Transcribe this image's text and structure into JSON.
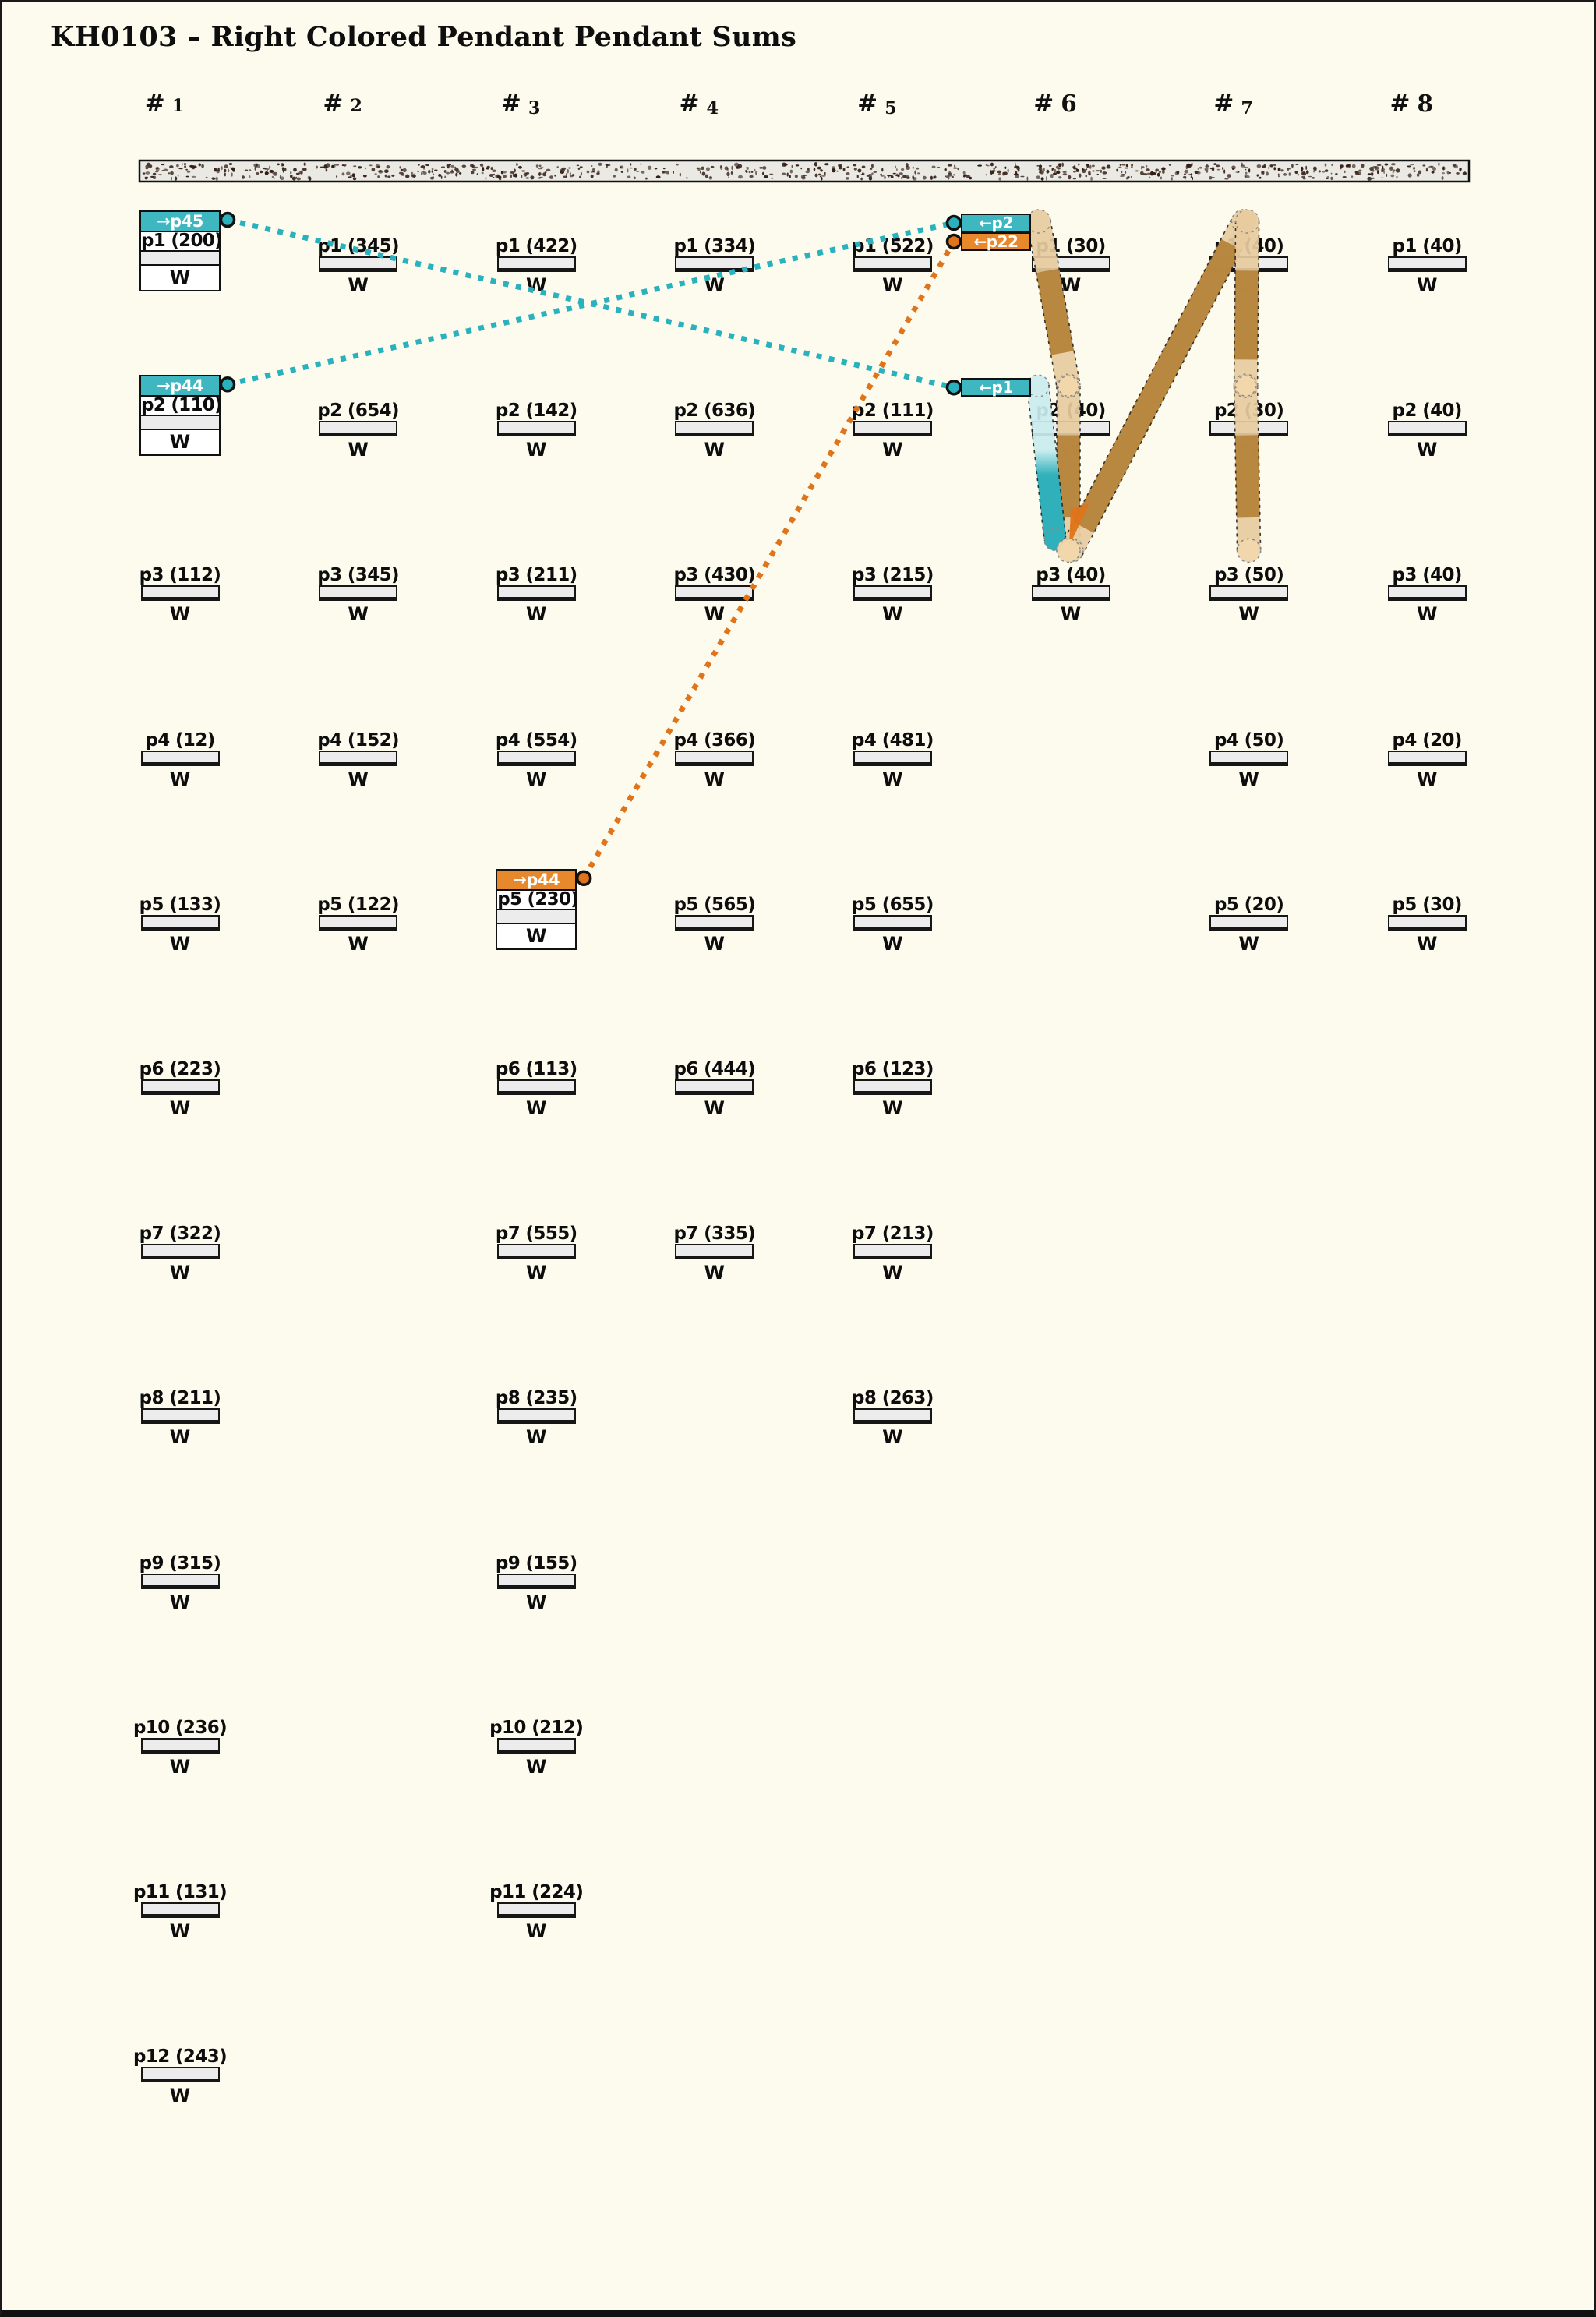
{
  "title": "KH0103 – Right Colored Pendant Pendant Sums",
  "header_prefix": "#",
  "headers": [
    "1",
    "2",
    "3",
    "4",
    "5",
    "6",
    "7",
    "8"
  ],
  "w_text": "W",
  "pendants": [
    {
      "c": 1,
      "r": 1,
      "label": "p1 (200)",
      "tag": {
        "id": "p45",
        "text": "→p45",
        "color": "teal"
      }
    },
    {
      "c": 2,
      "r": 1,
      "label": "p1 (345)"
    },
    {
      "c": 3,
      "r": 1,
      "label": "p1 (422)"
    },
    {
      "c": 4,
      "r": 1,
      "label": "p1 (334)"
    },
    {
      "c": 5,
      "r": 1,
      "label": "p1 (522)"
    },
    {
      "c": 6,
      "r": 1,
      "label": "p1 (30)"
    },
    {
      "c": 7,
      "r": 1,
      "label": "p1 (40)"
    },
    {
      "c": 8,
      "r": 1,
      "label": "p1 (40)"
    },
    {
      "c": 1,
      "r": 2,
      "label": "p2 (110)",
      "tag": {
        "id": "p44",
        "text": "→p44",
        "color": "teal"
      }
    },
    {
      "c": 2,
      "r": 2,
      "label": "p2 (654)"
    },
    {
      "c": 3,
      "r": 2,
      "label": "p2 (142)"
    },
    {
      "c": 4,
      "r": 2,
      "label": "p2 (636)"
    },
    {
      "c": 5,
      "r": 2,
      "label": "p2 (111)"
    },
    {
      "c": 6,
      "r": 2,
      "label": "p2 (40)"
    },
    {
      "c": 7,
      "r": 2,
      "label": "p2 (30)"
    },
    {
      "c": 8,
      "r": 2,
      "label": "p2 (40)"
    },
    {
      "c": 1,
      "r": 3,
      "label": "p3 (112)"
    },
    {
      "c": 2,
      "r": 3,
      "label": "p3 (345)"
    },
    {
      "c": 3,
      "r": 3,
      "label": "p3 (211)"
    },
    {
      "c": 4,
      "r": 3,
      "label": "p3 (430)"
    },
    {
      "c": 5,
      "r": 3,
      "label": "p3 (215)"
    },
    {
      "c": 6,
      "r": 3,
      "label": "p3 (40)"
    },
    {
      "c": 7,
      "r": 3,
      "label": "p3 (50)"
    },
    {
      "c": 8,
      "r": 3,
      "label": "p3 (40)"
    },
    {
      "c": 1,
      "r": 4,
      "label": "p4 (12)"
    },
    {
      "c": 2,
      "r": 4,
      "label": "p4 (152)"
    },
    {
      "c": 3,
      "r": 4,
      "label": "p4 (554)"
    },
    {
      "c": 4,
      "r": 4,
      "label": "p4 (366)"
    },
    {
      "c": 5,
      "r": 4,
      "label": "p4 (481)"
    },
    {
      "c": 7,
      "r": 4,
      "label": "p4 (50)"
    },
    {
      "c": 8,
      "r": 4,
      "label": "p4 (20)"
    },
    {
      "c": 1,
      "r": 5,
      "label": "p5 (133)"
    },
    {
      "c": 2,
      "r": 5,
      "label": "p5 (122)"
    },
    {
      "c": 3,
      "r": 5,
      "label": "p5 (230)",
      "tag": {
        "id": "p44b",
        "text": "→p44",
        "color": "orange"
      }
    },
    {
      "c": 4,
      "r": 5,
      "label": "p5 (565)"
    },
    {
      "c": 5,
      "r": 5,
      "label": "p5 (655)"
    },
    {
      "c": 7,
      "r": 5,
      "label": "p5 (20)"
    },
    {
      "c": 8,
      "r": 5,
      "label": "p5 (30)"
    },
    {
      "c": 1,
      "r": 6,
      "label": "p6 (223)"
    },
    {
      "c": 3,
      "r": 6,
      "label": "p6 (113)"
    },
    {
      "c": 4,
      "r": 6,
      "label": "p6 (444)"
    },
    {
      "c": 5,
      "r": 6,
      "label": "p6 (123)"
    },
    {
      "c": 1,
      "r": 7,
      "label": "p7 (322)"
    },
    {
      "c": 3,
      "r": 7,
      "label": "p7 (555)"
    },
    {
      "c": 4,
      "r": 7,
      "label": "p7 (335)"
    },
    {
      "c": 5,
      "r": 7,
      "label": "p7 (213)"
    },
    {
      "c": 1,
      "r": 8,
      "label": "p8 (211)"
    },
    {
      "c": 3,
      "r": 8,
      "label": "p8 (235)"
    },
    {
      "c": 5,
      "r": 8,
      "label": "p8 (263)"
    },
    {
      "c": 1,
      "r": 9,
      "label": "p9 (315)"
    },
    {
      "c": 3,
      "r": 9,
      "label": "p9 (155)"
    },
    {
      "c": 1,
      "r": 10,
      "label": "p10 (236)"
    },
    {
      "c": 3,
      "r": 10,
      "label": "p10 (212)"
    },
    {
      "c": 1,
      "r": 11,
      "label": "p11 (131)"
    },
    {
      "c": 3,
      "r": 11,
      "label": "p11 (224)"
    },
    {
      "c": 1,
      "r": 12,
      "label": "p12 (243)"
    }
  ],
  "side_tags": [
    {
      "id": "t_p2",
      "text": "←p2",
      "color": "teal",
      "c": 6,
      "r": 1,
      "slot": 0
    },
    {
      "id": "t_p22",
      "text": "←p22",
      "color": "orange",
      "c": 6,
      "r": 1,
      "slot": 1
    },
    {
      "id": "t_p1",
      "text": "←p1",
      "color": "teal",
      "c": 6,
      "r": 2,
      "slot": 0
    }
  ],
  "connectors": [
    {
      "from": "p45",
      "to": "t_p1",
      "color": "teal"
    },
    {
      "from": "p44",
      "to": "t_p2",
      "color": "teal"
    },
    {
      "from": "p44b",
      "to": "t_p22",
      "color": "orange"
    }
  ],
  "ribbons": [
    {
      "from": [
        6,
        1,
        -41
      ],
      "to": [
        6,
        2,
        -3
      ],
      "dark": [
        0.3,
        0.8
      ],
      "kind": "tan"
    },
    {
      "from": [
        6,
        2,
        -3
      ],
      "to": [
        6,
        3,
        -3
      ],
      "dark": [
        0.3,
        0.8
      ],
      "kind": "tan"
    },
    {
      "from": [
        6,
        2,
        -42
      ],
      "to": [
        6,
        3,
        -20
      ],
      "dark": [
        0.48,
        1.0
      ],
      "kind": "teal",
      "shorten": 14
    },
    {
      "from": [
        6,
        3,
        1
      ],
      "to": [
        7,
        1,
        -7
      ],
      "dark": [
        0.07,
        0.93
      ],
      "kind": "tan"
    },
    {
      "from": [
        7,
        1,
        -2
      ],
      "to": [
        7,
        2,
        -4
      ],
      "dark": [
        0.3,
        0.84
      ],
      "kind": "tan"
    },
    {
      "from": [
        7,
        2,
        -4
      ],
      "to": [
        7,
        3,
        0
      ],
      "dark": [
        0.3,
        0.8
      ],
      "kind": "tan"
    }
  ],
  "orange_wedge": {
    "anchor": [
      6,
      3,
      0
    ],
    "pts": [
      [
        0,
        -53
      ],
      [
        24,
        -60
      ],
      [
        -2,
        -6
      ]
    ]
  },
  "junction_caps": [
    {
      "at": [
        6,
        2,
        -3
      ],
      "r": 13
    },
    {
      "at": [
        7,
        2,
        -4
      ],
      "r": 13
    },
    {
      "at": [
        6,
        3,
        -3
      ],
      "r": 15
    },
    {
      "at": [
        7,
        3,
        0
      ],
      "r": 15
    }
  ],
  "colors": {
    "tag_teal": "#3eb7c1",
    "tag_orange": "#e8882c",
    "line_teal": "#29b2bd",
    "line_orange": "#e0741a",
    "ribbon_light": "#e7cb9e",
    "ribbon_dark": "#b5833a",
    "ribbon_cap": "#f1d7ab",
    "teal_light": "#c9ecee",
    "teal_dark": "#2fb0ba",
    "wedge_orange": "#e0751b",
    "bar_fill": "#ececec",
    "band_bg": "#eae9e4",
    "speckle": "#311d13",
    "background": "#fcfbee"
  }
}
